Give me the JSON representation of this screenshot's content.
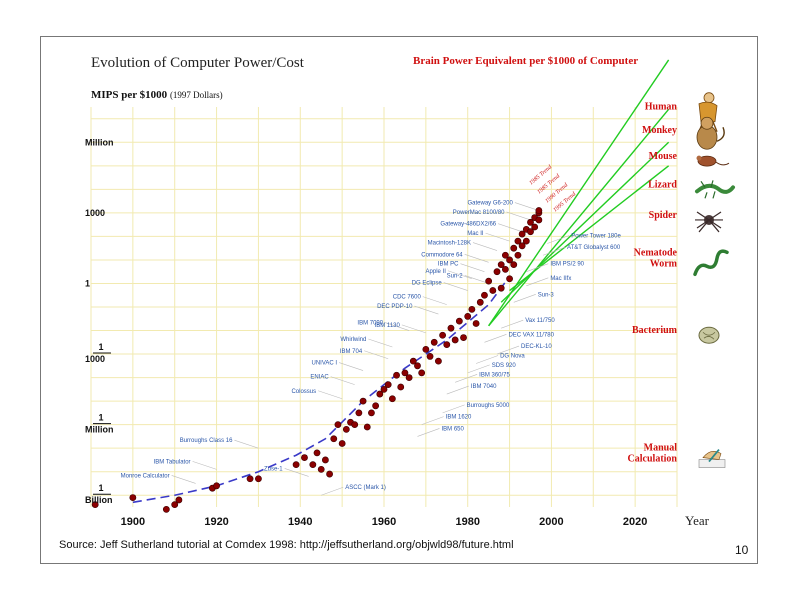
{
  "slide": {
    "title": "Evolution of Computer Power/Cost",
    "y_title": "MIPS per $1000",
    "y_subtitle": "(1997 Dollars)",
    "right_title": "Brain Power Equivalent per $1000 of Computer",
    "source": "Source: Jeff Sutherland tutorial at Comdex 1998: http://jeffsutherland.org/objwld98/future.html",
    "page_number": "10"
  },
  "colors": {
    "point": "#8b0000",
    "grid": "#f2eab0",
    "trend_dash": "#3a3ac8",
    "green_trend": "#22cc22",
    "title_red": "#d01010",
    "machine_label": "#2a56a8"
  },
  "chart_data": {
    "type": "scatter",
    "xlabel": "Year",
    "ylabel": "MIPS per $1000",
    "x_ticks": [
      1900,
      1920,
      1940,
      1960,
      1980,
      2000,
      2020
    ],
    "xlim": [
      1890,
      2030
    ],
    "y_scale": "log10",
    "ylim_log10": [
      -9.5,
      7.5
    ],
    "y_ticks": [
      {
        "log10": 6,
        "label": [
          "Million"
        ]
      },
      {
        "log10": 3,
        "label": [
          "1000"
        ]
      },
      {
        "log10": 0,
        "label": [
          "1"
        ]
      },
      {
        "log10": -3,
        "label": [
          "1",
          "1000"
        ]
      },
      {
        "log10": -6,
        "label": [
          "1",
          "Million"
        ]
      },
      {
        "log10": -9,
        "label": [
          "1",
          "Billion"
        ]
      }
    ],
    "grid": true,
    "points": [
      [
        1891,
        -9.4
      ],
      [
        1900,
        -9.1
      ],
      [
        1908,
        -9.6
      ],
      [
        1910,
        -9.4
      ],
      [
        1911,
        -9.2
      ],
      [
        1919,
        -8.7
      ],
      [
        1920,
        -8.6
      ],
      [
        1928,
        -8.3
      ],
      [
        1930,
        -8.3
      ],
      [
        1939,
        -7.7
      ],
      [
        1941,
        -7.4
      ],
      [
        1943,
        -7.7
      ],
      [
        1944,
        -7.2
      ],
      [
        1945,
        -7.9
      ],
      [
        1946,
        -7.5
      ],
      [
        1947,
        -8.1
      ],
      [
        1948,
        -6.6
      ],
      [
        1949,
        -6.0
      ],
      [
        1950,
        -6.8
      ],
      [
        1951,
        -6.2
      ],
      [
        1952,
        -5.9
      ],
      [
        1953,
        -6.0
      ],
      [
        1954,
        -5.5
      ],
      [
        1955,
        -5.0
      ],
      [
        1956,
        -6.1
      ],
      [
        1957,
        -5.5
      ],
      [
        1958,
        -5.2
      ],
      [
        1959,
        -4.7
      ],
      [
        1960,
        -4.5
      ],
      [
        1961,
        -4.3
      ],
      [
        1962,
        -4.9
      ],
      [
        1963,
        -3.9
      ],
      [
        1964,
        -4.4
      ],
      [
        1965,
        -3.8
      ],
      [
        1966,
        -4.0
      ],
      [
        1967,
        -3.3
      ],
      [
        1968,
        -3.5
      ],
      [
        1969,
        -3.8
      ],
      [
        1970,
        -2.8
      ],
      [
        1971,
        -3.1
      ],
      [
        1972,
        -2.5
      ],
      [
        1973,
        -3.3
      ],
      [
        1974,
        -2.2
      ],
      [
        1975,
        -2.6
      ],
      [
        1976,
        -1.9
      ],
      [
        1977,
        -2.4
      ],
      [
        1978,
        -1.6
      ],
      [
        1979,
        -2.3
      ],
      [
        1980,
        -1.4
      ],
      [
        1981,
        -1.1
      ],
      [
        1982,
        -1.7
      ],
      [
        1983,
        -0.8
      ],
      [
        1984,
        -0.5
      ],
      [
        1985,
        0.1
      ],
      [
        1986,
        -0.3
      ],
      [
        1987,
        0.5
      ],
      [
        1988,
        -0.2
      ],
      [
        1988,
        0.8
      ],
      [
        1989,
        0.6
      ],
      [
        1989,
        1.2
      ],
      [
        1990,
        1.0
      ],
      [
        1990,
        0.2
      ],
      [
        1991,
        1.5
      ],
      [
        1991,
        0.8
      ],
      [
        1992,
        1.2
      ],
      [
        1992,
        1.8
      ],
      [
        1993,
        1.6
      ],
      [
        1993,
        2.1
      ],
      [
        1994,
        1.8
      ],
      [
        1994,
        2.3
      ],
      [
        1995,
        2.2
      ],
      [
        1995,
        2.6
      ],
      [
        1996,
        2.4
      ],
      [
        1996,
        2.8
      ],
      [
        1997,
        2.7
      ],
      [
        1997,
        3.0
      ],
      [
        1997,
        3.1
      ]
    ],
    "machine_labels": [
      {
        "text": "Gateway G6-200",
        "x": 1997,
        "y": 3.1,
        "side": "left"
      },
      {
        "text": "PowerMac 8100/80",
        "x": 1995,
        "y": 2.7,
        "side": "left"
      },
      {
        "text": "Gateway-486DX2/66",
        "x": 1993,
        "y": 2.2,
        "side": "left"
      },
      {
        "text": "Mac II",
        "x": 1990,
        "y": 1.8,
        "side": "left"
      },
      {
        "text": "Macintosh-128K",
        "x": 1987,
        "y": 1.4,
        "side": "left"
      },
      {
        "text": "Commodore 64",
        "x": 1985,
        "y": 0.9,
        "side": "left"
      },
      {
        "text": "IBM PC",
        "x": 1984,
        "y": 0.5,
        "side": "left"
      },
      {
        "text": "Apple II",
        "x": 1981,
        "y": 0.2,
        "side": "left"
      },
      {
        "text": "Sun-2",
        "x": 1985,
        "y": 0.0,
        "side": "left"
      },
      {
        "text": "DG Eclipse",
        "x": 1980,
        "y": -0.3,
        "side": "left"
      },
      {
        "text": "CDC 7600",
        "x": 1975,
        "y": -0.9,
        "side": "left"
      },
      {
        "text": "DEC PDP-10",
        "x": 1973,
        "y": -1.3,
        "side": "left"
      },
      {
        "text": "IBM 7090",
        "x": 1966,
        "y": -2.0,
        "side": "left"
      },
      {
        "text": "IBM 1130",
        "x": 1970,
        "y": -2.1,
        "side": "left"
      },
      {
        "text": "Whirlwind",
        "x": 1962,
        "y": -2.7,
        "side": "left"
      },
      {
        "text": "IBM 704",
        "x": 1961,
        "y": -3.2,
        "side": "left"
      },
      {
        "text": "UNIVAC I",
        "x": 1955,
        "y": -3.7,
        "side": "left"
      },
      {
        "text": "ENIAC",
        "x": 1953,
        "y": -4.3,
        "side": "left"
      },
      {
        "text": "Colossus",
        "x": 1950,
        "y": -4.9,
        "side": "left"
      },
      {
        "text": "Burroughs Class 16",
        "x": 1930,
        "y": -7.0,
        "side": "left"
      },
      {
        "text": "IBM Tabulator",
        "x": 1920,
        "y": -7.9,
        "side": "left"
      },
      {
        "text": "Monroe Calculator",
        "x": 1915,
        "y": -8.5,
        "side": "left"
      },
      {
        "text": "Zuse-1",
        "x": 1942,
        "y": -8.2,
        "side": "left"
      },
      {
        "text": "ASCC (Mark 1)",
        "x": 1945,
        "y": -9.0,
        "side": "right"
      },
      {
        "text": "Power Tower 180e",
        "x": 1999,
        "y": 1.7,
        "side": "right"
      },
      {
        "text": "AT&T Globalyst 600",
        "x": 1998,
        "y": 1.2,
        "side": "right"
      },
      {
        "text": "IBM PS/2 90",
        "x": 1994,
        "y": 0.5,
        "side": "right"
      },
      {
        "text": "Mac IIfx",
        "x": 1994,
        "y": -0.1,
        "side": "right"
      },
      {
        "text": "Sun-3",
        "x": 1991,
        "y": -0.8,
        "side": "right"
      },
      {
        "text": "Vax 11/750",
        "x": 1988,
        "y": -1.9,
        "side": "right"
      },
      {
        "text": "DEC VAX 11/780",
        "x": 1984,
        "y": -2.5,
        "side": "right"
      },
      {
        "text": "DEC-KL-10",
        "x": 1987,
        "y": -3.0,
        "side": "right"
      },
      {
        "text": "DG Nova",
        "x": 1982,
        "y": -3.4,
        "side": "right"
      },
      {
        "text": "SDS 920",
        "x": 1980,
        "y": -3.8,
        "side": "right"
      },
      {
        "text": "IBM 360/75",
        "x": 1977,
        "y": -4.2,
        "side": "right"
      },
      {
        "text": "IBM 7040",
        "x": 1975,
        "y": -4.7,
        "side": "right"
      },
      {
        "text": "Burroughs 5000",
        "x": 1974,
        "y": -5.5,
        "side": "right"
      },
      {
        "text": "IBM 1620",
        "x": 1969,
        "y": -6.0,
        "side": "right"
      },
      {
        "text": "IBM 650",
        "x": 1968,
        "y": -6.5,
        "side": "right"
      }
    ],
    "trend_labels": [
      "1985 Trend",
      "1985 Trend",
      "1990 Trend",
      "1995 Trend"
    ],
    "green_trends": [
      {
        "from": [
          1985,
          -1.8
        ],
        "to": [
          2028,
          9.5
        ]
      },
      {
        "from": [
          1985,
          -1.8
        ],
        "to": [
          2028,
          7.4
        ]
      },
      {
        "from": [
          1988,
          -0.8
        ],
        "to": [
          2028,
          6.0
        ]
      },
      {
        "from": [
          1990,
          -0.3
        ],
        "to": [
          2028,
          5.0
        ]
      }
    ],
    "benchmarks": [
      {
        "name": [
          "Human"
        ],
        "y_level": 7.3,
        "icon": "human-icon"
      },
      {
        "name": [
          "Monkey"
        ],
        "y_level": 6.3,
        "icon": "monkey-icon"
      },
      {
        "name": [
          "Mouse"
        ],
        "y_level": 5.2,
        "icon": "mouse-icon"
      },
      {
        "name": [
          "Lizard"
        ],
        "y_level": 4.0,
        "icon": "lizard-icon"
      },
      {
        "name": [
          "Spider"
        ],
        "y_level": 2.7,
        "icon": "spider-icon"
      },
      {
        "name": [
          "Nematode",
          "Worm"
        ],
        "y_level": 0.9,
        "icon": "worm-icon"
      },
      {
        "name": [
          "Bacterium"
        ],
        "y_level": -2.2,
        "icon": "bacterium-icon"
      },
      {
        "name": [
          "Manual",
          "Calculation"
        ],
        "y_level": -7.4,
        "icon": "hand-writing-icon"
      }
    ]
  }
}
